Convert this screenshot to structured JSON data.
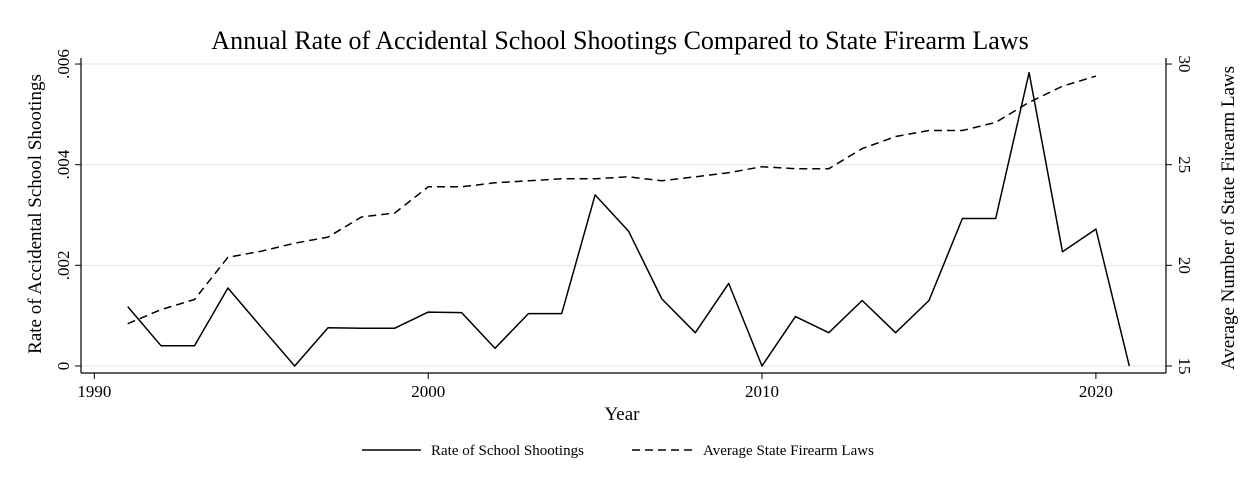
{
  "chart_data": {
    "type": "line",
    "title": "Annual Rate of Accidental School Shootings Compared to State Firearm Laws",
    "xlabel": "Year",
    "ylabel": "Rate of Accidental School Shootings",
    "y2label": "Average Number of State Firearm Laws",
    "xlim": [
      1989.6,
      2022.1
    ],
    "ylim": [
      -0.00014,
      0.00612
    ],
    "y2lim": [
      14.65,
      30.3
    ],
    "xticks": [
      "1990",
      "2000",
      "2010",
      "2020"
    ],
    "yticks": [
      "0",
      ".002",
      ".004",
      ".006"
    ],
    "y2ticks": [
      "15",
      "20",
      "25",
      "30"
    ],
    "grid": true,
    "legend_position": "bottom-center",
    "series": [
      {
        "name": "Rate of School Shootings",
        "axis": "left",
        "style": "solid",
        "color": "#000000",
        "x": [
          1991,
          1992,
          1993,
          1994,
          1995,
          1996,
          1997,
          1998,
          1999,
          2000,
          2001,
          2002,
          2003,
          2004,
          2005,
          2006,
          2007,
          2008,
          2009,
          2010,
          2011,
          2012,
          2013,
          2014,
          2015,
          2016,
          2017,
          2018,
          2019,
          2020,
          2021
        ],
        "y": [
          0.00118,
          0.0004,
          0.0004,
          0.00155,
          0.00077,
          0.0,
          0.00076,
          0.00075,
          0.00075,
          0.00107,
          0.00106,
          0.00035,
          0.00104,
          0.00104,
          0.0034,
          0.00268,
          0.00133,
          0.00066,
          0.00164,
          0.0,
          0.00098,
          0.00066,
          0.0013,
          0.00066,
          0.0013,
          0.00293,
          0.00293,
          0.00583,
          0.00227,
          0.00272,
          0.0
        ]
      },
      {
        "name": "Average State Firearm Laws",
        "axis": "right",
        "style": "dashed",
        "color": "#000000",
        "x": [
          1991,
          1992,
          1993,
          1994,
          1995,
          1996,
          1997,
          1998,
          1999,
          2000,
          2001,
          2002,
          2003,
          2004,
          2005,
          2006,
          2007,
          2008,
          2009,
          2010,
          2011,
          2012,
          2013,
          2014,
          2015,
          2016,
          2017,
          2018,
          2019,
          2020
        ],
        "y": [
          17.1,
          17.8,
          18.3,
          20.4,
          20.7,
          21.1,
          21.4,
          22.4,
          22.6,
          23.9,
          23.9,
          24.1,
          24.2,
          24.3,
          24.3,
          24.4,
          24.2,
          24.4,
          24.6,
          24.9,
          24.8,
          24.8,
          25.8,
          26.4,
          26.7,
          26.7,
          27.1,
          28.1,
          28.9,
          29.4
        ]
      }
    ]
  }
}
